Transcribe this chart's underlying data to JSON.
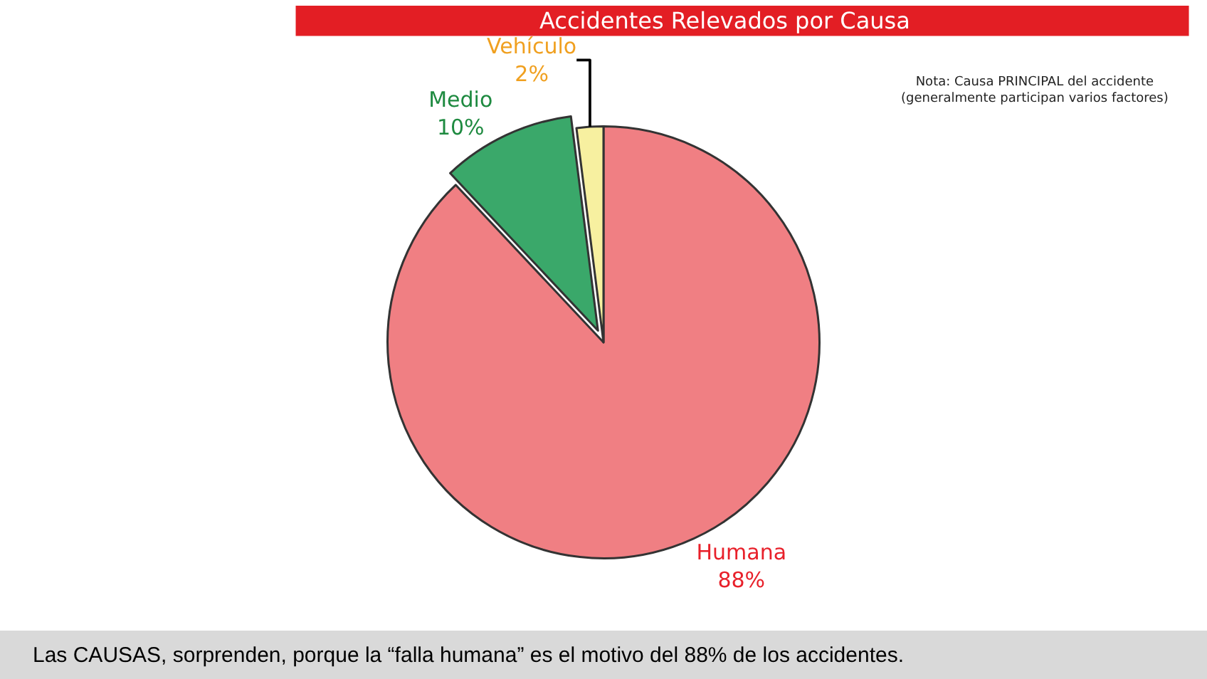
{
  "chart_data": {
    "type": "pie",
    "title": "Accidentes Relevados por Causa",
    "categories": [
      "Humana",
      "Medio",
      "Vehículo"
    ],
    "values": [
      88,
      10,
      2
    ],
    "value_labels": [
      "88%",
      "10%",
      "2%"
    ],
    "colors": [
      "#f07f83",
      "#3aa86a",
      "#f7f0a0"
    ],
    "legend": false,
    "annotations": [
      "Nota: Causa PRINCIPAL del accidente (generalmente participan varios factores)",
      "Las CAUSAS, sorprenden, porque la “falla humana” es el motivo del 88% de los accidentes."
    ]
  }
}
